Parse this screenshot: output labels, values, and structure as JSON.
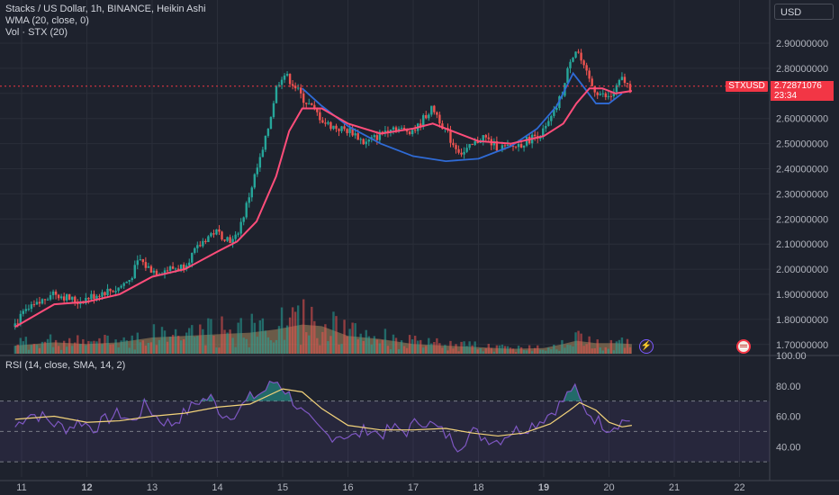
{
  "header": {
    "symbol_legend": "Stacks / US Dollar, 1h, BINANCE, Heikin Ashi",
    "wma_legend": "WMA (20, close, 0)",
    "vol_legend": "Vol · STX (20)",
    "rsi_legend": "RSI (14, close, SMA, 14, 2)",
    "currency": "USD"
  },
  "price_marker": {
    "ticker": "STXUSD",
    "price": "2.72871076",
    "countdown": "23:34"
  },
  "colors": {
    "background": "#1e222d",
    "up_candle": "#26a69a",
    "down_candle": "#ef5350",
    "wma_line": "#ff4d7a",
    "cup_curve": "#2f6bd6",
    "rsi_line": "#7e57c2",
    "rsi_ma": "#f3d37a",
    "price_line": "#f23645"
  },
  "chart_data": {
    "type": "candlestick",
    "price_axis_ticks": [
      "2.90000000",
      "2.80000000",
      "2.70000000",
      "2.60000000",
      "2.50000000",
      "2.40000000",
      "2.30000000",
      "2.20000000",
      "2.10000000",
      "2.00000000",
      "1.90000000",
      "1.80000000",
      "1.70000000"
    ],
    "rsi_axis_ticks": [
      "100.00",
      "80.00",
      "60.00",
      "40.00"
    ],
    "x_ticks": [
      "11",
      "12",
      "13",
      "14",
      "15",
      "16",
      "17",
      "18",
      "19",
      "20",
      "21",
      "22"
    ],
    "x_ticks_bold": [
      "12",
      "19"
    ],
    "ylim": [
      1.66,
      2.98
    ],
    "rsi_ylim": [
      20,
      100
    ],
    "rsi_bands": [
      70,
      50,
      30
    ],
    "last_price": 2.72871076,
    "price_path": [
      [
        10.9,
        1.77
      ],
      [
        11.1,
        1.83
      ],
      [
        11.3,
        1.86
      ],
      [
        11.5,
        1.91
      ],
      [
        11.7,
        1.89
      ],
      [
        11.9,
        1.87
      ],
      [
        12.1,
        1.89
      ],
      [
        12.3,
        1.91
      ],
      [
        12.5,
        1.92
      ],
      [
        12.7,
        1.96
      ],
      [
        12.85,
        2.04
      ],
      [
        12.95,
        2.01
      ],
      [
        13.1,
        1.99
      ],
      [
        13.3,
        2.0
      ],
      [
        13.5,
        2.01
      ],
      [
        13.7,
        2.07
      ],
      [
        13.85,
        2.12
      ],
      [
        14.0,
        2.15
      ],
      [
        14.15,
        2.13
      ],
      [
        14.3,
        2.11
      ],
      [
        14.45,
        2.22
      ],
      [
        14.6,
        2.36
      ],
      [
        14.75,
        2.48
      ],
      [
        14.85,
        2.6
      ],
      [
        14.95,
        2.73
      ],
      [
        15.05,
        2.78
      ],
      [
        15.2,
        2.74
      ],
      [
        15.35,
        2.68
      ],
      [
        15.5,
        2.64
      ],
      [
        15.7,
        2.58
      ],
      [
        15.9,
        2.56
      ],
      [
        16.1,
        2.55
      ],
      [
        16.3,
        2.5
      ],
      [
        16.5,
        2.53
      ],
      [
        16.7,
        2.57
      ],
      [
        16.9,
        2.55
      ],
      [
        17.1,
        2.56
      ],
      [
        17.25,
        2.62
      ],
      [
        17.35,
        2.64
      ],
      [
        17.5,
        2.57
      ],
      [
        17.65,
        2.5
      ],
      [
        17.8,
        2.46
      ],
      [
        17.95,
        2.49
      ],
      [
        18.1,
        2.53
      ],
      [
        18.3,
        2.49
      ],
      [
        18.5,
        2.48
      ],
      [
        18.7,
        2.5
      ],
      [
        18.9,
        2.53
      ],
      [
        19.05,
        2.55
      ],
      [
        19.2,
        2.62
      ],
      [
        19.35,
        2.72
      ],
      [
        19.45,
        2.84
      ],
      [
        19.55,
        2.88
      ],
      [
        19.65,
        2.8
      ],
      [
        19.8,
        2.72
      ],
      [
        19.95,
        2.69
      ],
      [
        20.05,
        2.68
      ],
      [
        20.15,
        2.72
      ],
      [
        20.25,
        2.76
      ],
      [
        20.35,
        2.72
      ]
    ],
    "wma_path": [
      [
        10.9,
        1.77
      ],
      [
        11.5,
        1.86
      ],
      [
        12.0,
        1.87
      ],
      [
        12.5,
        1.9
      ],
      [
        13.0,
        1.97
      ],
      [
        13.5,
        2.0
      ],
      [
        14.0,
        2.07
      ],
      [
        14.3,
        2.11
      ],
      [
        14.6,
        2.19
      ],
      [
        14.9,
        2.37
      ],
      [
        15.1,
        2.55
      ],
      [
        15.3,
        2.64
      ],
      [
        15.6,
        2.64
      ],
      [
        16.0,
        2.58
      ],
      [
        16.5,
        2.54
      ],
      [
        17.0,
        2.56
      ],
      [
        17.3,
        2.58
      ],
      [
        17.6,
        2.55
      ],
      [
        18.0,
        2.51
      ],
      [
        18.5,
        2.5
      ],
      [
        19.0,
        2.53
      ],
      [
        19.3,
        2.58
      ],
      [
        19.5,
        2.66
      ],
      [
        19.7,
        2.72
      ],
      [
        19.9,
        2.72
      ],
      [
        20.1,
        2.7
      ],
      [
        20.35,
        2.71
      ]
    ],
    "cup_path": [
      [
        15.3,
        2.72
      ],
      [
        15.6,
        2.65
      ],
      [
        16.0,
        2.57
      ],
      [
        16.5,
        2.5
      ],
      [
        17.0,
        2.45
      ],
      [
        17.5,
        2.43
      ],
      [
        18.0,
        2.44
      ],
      [
        18.5,
        2.49
      ],
      [
        18.9,
        2.56
      ],
      [
        19.2,
        2.65
      ],
      [
        19.45,
        2.78
      ],
      [
        19.6,
        2.73
      ],
      [
        19.8,
        2.66
      ],
      [
        20.0,
        2.66
      ],
      [
        20.2,
        2.7
      ]
    ],
    "volume_path": [
      [
        10.9,
        0.1
      ],
      [
        11.5,
        0.14
      ],
      [
        12.0,
        0.12
      ],
      [
        12.5,
        0.14
      ],
      [
        13.0,
        0.2
      ],
      [
        13.5,
        0.22
      ],
      [
        14.0,
        0.24
      ],
      [
        14.5,
        0.26
      ],
      [
        14.9,
        0.3
      ],
      [
        15.3,
        0.36
      ],
      [
        15.6,
        0.34
      ],
      [
        16.0,
        0.22
      ],
      [
        16.5,
        0.18
      ],
      [
        17.0,
        0.12
      ],
      [
        17.5,
        0.1
      ],
      [
        18.0,
        0.08
      ],
      [
        18.5,
        0.06
      ],
      [
        19.0,
        0.07
      ],
      [
        19.3,
        0.12
      ],
      [
        19.5,
        0.16
      ],
      [
        19.8,
        0.13
      ],
      [
        20.1,
        0.13
      ],
      [
        20.35,
        0.12
      ]
    ],
    "rsi_path": [
      [
        10.9,
        53
      ],
      [
        11.1,
        62
      ],
      [
        11.3,
        60
      ],
      [
        11.5,
        55
      ],
      [
        11.7,
        52
      ],
      [
        11.9,
        57
      ],
      [
        12.1,
        52
      ],
      [
        12.3,
        58
      ],
      [
        12.5,
        62
      ],
      [
        12.7,
        56
      ],
      [
        12.9,
        68
      ],
      [
        13.1,
        58
      ],
      [
        13.3,
        55
      ],
      [
        13.5,
        62
      ],
      [
        13.7,
        70
      ],
      [
        13.9,
        72
      ],
      [
        14.1,
        60
      ],
      [
        14.3,
        63
      ],
      [
        14.5,
        72
      ],
      [
        14.7,
        76
      ],
      [
        14.9,
        84
      ],
      [
        15.1,
        74
      ],
      [
        15.3,
        62
      ],
      [
        15.5,
        53
      ],
      [
        15.7,
        47
      ],
      [
        15.9,
        48
      ],
      [
        16.1,
        46
      ],
      [
        16.3,
        52
      ],
      [
        16.5,
        48
      ],
      [
        16.7,
        52
      ],
      [
        16.9,
        50
      ],
      [
        17.1,
        58
      ],
      [
        17.3,
        54
      ],
      [
        17.5,
        48
      ],
      [
        17.7,
        40
      ],
      [
        17.9,
        50
      ],
      [
        18.1,
        46
      ],
      [
        18.3,
        44
      ],
      [
        18.5,
        50
      ],
      [
        18.7,
        52
      ],
      [
        18.9,
        56
      ],
      [
        19.1,
        62
      ],
      [
        19.3,
        70
      ],
      [
        19.45,
        80
      ],
      [
        19.6,
        66
      ],
      [
        19.8,
        58
      ],
      [
        20.0,
        52
      ],
      [
        20.15,
        56
      ],
      [
        20.3,
        58
      ]
    ],
    "rsi_ma_path": [
      [
        10.9,
        58
      ],
      [
        11.5,
        60
      ],
      [
        12.0,
        56
      ],
      [
        12.5,
        57
      ],
      [
        13.0,
        60
      ],
      [
        13.5,
        62
      ],
      [
        14.0,
        66
      ],
      [
        14.5,
        68
      ],
      [
        15.0,
        78
      ],
      [
        15.3,
        76
      ],
      [
        15.6,
        65
      ],
      [
        16.0,
        54
      ],
      [
        16.5,
        51
      ],
      [
        17.0,
        51
      ],
      [
        17.5,
        52
      ],
      [
        17.9,
        49
      ],
      [
        18.3,
        47
      ],
      [
        18.7,
        49
      ],
      [
        19.1,
        55
      ],
      [
        19.4,
        64
      ],
      [
        19.55,
        69
      ],
      [
        19.8,
        64
      ],
      [
        20.0,
        56
      ],
      [
        20.2,
        53
      ],
      [
        20.35,
        54
      ]
    ]
  }
}
